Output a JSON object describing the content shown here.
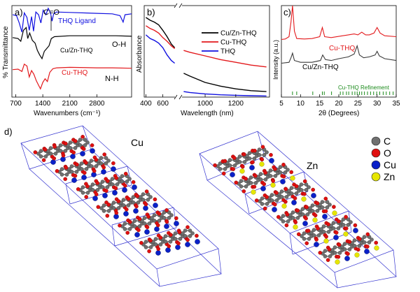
{
  "colors": {
    "black": "#000000",
    "red": "#e3191c",
    "blue": "#1010e0",
    "green": "#1a8a1a",
    "gray": "#3a3a3a",
    "cu": "#0a20c8",
    "zn": "#e6e600",
    "o": "#e01010",
    "c": "#707070",
    "cell": "#3535d0"
  },
  "chart_data": [
    {
      "type": "line",
      "panel_label": "a)",
      "xlabel": "Wavenumbers (cm⁻¹)",
      "ylabel": "% Transmittance",
      "xlim": [
        600,
        3700
      ],
      "ylim": [
        0,
        10
      ],
      "x_ticks": [
        700,
        1400,
        2100,
        2800
      ],
      "annotations": [
        "C=O",
        "O-H",
        "N-H"
      ],
      "series": [
        {
          "name": "THQ Ligand",
          "color": "#1010e0",
          "points": [
            [
              620,
              9.0
            ],
            [
              720,
              8.9
            ],
            [
              790,
              8.1
            ],
            [
              860,
              7.1
            ],
            [
              920,
              9.2
            ],
            [
              990,
              8.7
            ],
            [
              1050,
              7.3
            ],
            [
              1110,
              8.8
            ],
            [
              1160,
              7.2
            ],
            [
              1220,
              9.3
            ],
            [
              1290,
              9.0
            ],
            [
              1350,
              8.1
            ],
            [
              1410,
              9.5
            ],
            [
              1480,
              9.0
            ],
            [
              1540,
              9.7
            ],
            [
              1600,
              9.2
            ],
            [
              1640,
              8.3
            ],
            [
              1680,
              9.1
            ],
            [
              1750,
              9.3
            ],
            [
              2100,
              9.25
            ],
            [
              2800,
              9.15
            ],
            [
              3200,
              9.1
            ],
            [
              3400,
              8.9
            ],
            [
              3480,
              8.2
            ],
            [
              3530,
              9.0
            ],
            [
              3700,
              9.1
            ]
          ]
        },
        {
          "name": "Cu/Zn-THQ",
          "color": "#000000",
          "points": [
            [
              620,
              6.5
            ],
            [
              760,
              6.4
            ],
            [
              830,
              6.1
            ],
            [
              900,
              7.3
            ],
            [
              970,
              7.6
            ],
            [
              1010,
              6.4
            ],
            [
              1060,
              7.0
            ],
            [
              1130,
              6.2
            ],
            [
              1200,
              5.9
            ],
            [
              1260,
              5.1
            ],
            [
              1320,
              4.6
            ],
            [
              1380,
              4.2
            ],
            [
              1440,
              5.0
            ],
            [
              1500,
              5.3
            ],
            [
              1560,
              5.6
            ],
            [
              1620,
              6.4
            ],
            [
              1700,
              6.6
            ],
            [
              2100,
              6.7
            ],
            [
              2800,
              6.7
            ],
            [
              3300,
              6.7
            ],
            [
              3700,
              6.65
            ]
          ]
        },
        {
          "name": "Cu-THQ",
          "color": "#e3191c",
          "points": [
            [
              620,
              3.0
            ],
            [
              760,
              3.05
            ],
            [
              860,
              2.8
            ],
            [
              920,
              3.6
            ],
            [
              990,
              3.4
            ],
            [
              1050,
              2.2
            ],
            [
              1110,
              2.9
            ],
            [
              1170,
              2.5
            ],
            [
              1230,
              1.8
            ],
            [
              1290,
              1.3
            ],
            [
              1340,
              0.9
            ],
            [
              1400,
              1.6
            ],
            [
              1460,
              2.0
            ],
            [
              1520,
              1.7
            ],
            [
              1580,
              2.7
            ],
            [
              1660,
              3.1
            ],
            [
              1760,
              3.2
            ],
            [
              2100,
              3.25
            ],
            [
              2800,
              3.2
            ],
            [
              3200,
              3.2
            ],
            [
              3700,
              3.15
            ]
          ]
        }
      ],
      "labels": {
        "thq": "THQ Ligand",
        "cuzn": "Cu/Zn-THQ",
        "cu": "Cu-THQ"
      }
    },
    {
      "type": "line",
      "panel_label": "b)",
      "xlabel": "Wavelength (nm)",
      "ylabel": "Absorbance",
      "x_ticks_left": [
        400,
        600
      ],
      "x_ticks_right": [
        1000,
        1200
      ],
      "ylim": [
        0,
        10
      ],
      "legend": [
        "Cu/Zn-THQ",
        "Cu-THQ",
        "THQ"
      ],
      "legend_position": "top-right",
      "series": [
        {
          "name": "Cu/Zn-THQ",
          "color": "#000000",
          "points_left": [
            [
              400,
              8.7
            ],
            [
              450,
              8.4
            ],
            [
              500,
              8.2
            ],
            [
              550,
              7.9
            ],
            [
              600,
              7.3
            ],
            [
              650,
              6.6
            ],
            [
              700,
              5.8
            ],
            [
              740,
              5.4
            ]
          ],
          "points_right": [
            [
              860,
              2.6
            ],
            [
              900,
              2.3
            ],
            [
              1000,
              1.6
            ],
            [
              1100,
              1.2
            ],
            [
              1200,
              0.9
            ],
            [
              1300,
              0.7
            ],
            [
              1400,
              0.6
            ]
          ]
        },
        {
          "name": "Cu-THQ",
          "color": "#e3191c",
          "points_left": [
            [
              400,
              7.8
            ],
            [
              450,
              7.5
            ],
            [
              500,
              7.3
            ],
            [
              550,
              7.0
            ],
            [
              600,
              6.5
            ],
            [
              650,
              6.1
            ],
            [
              700,
              5.6
            ],
            [
              740,
              5.3
            ]
          ],
          "points_right": [
            [
              860,
              5.1
            ],
            [
              900,
              4.9
            ],
            [
              1000,
              4.5
            ],
            [
              1100,
              4.1
            ],
            [
              1200,
              3.8
            ],
            [
              1300,
              3.5
            ],
            [
              1400,
              3.3
            ]
          ]
        },
        {
          "name": "THQ",
          "color": "#1010e0",
          "points_left": [
            [
              400,
              6.8
            ],
            [
              450,
              6.4
            ],
            [
              500,
              6.2
            ],
            [
              550,
              5.9
            ],
            [
              600,
              5.4
            ],
            [
              650,
              4.6
            ],
            [
              700,
              4.0
            ],
            [
              740,
              3.7
            ]
          ],
          "points_right": [
            [
              860,
              0.6
            ],
            [
              900,
              0.5
            ],
            [
              1000,
              0.35
            ],
            [
              1100,
              0.25
            ],
            [
              1200,
              0.2
            ],
            [
              1300,
              0.15
            ],
            [
              1400,
              0.12
            ]
          ]
        }
      ]
    },
    {
      "type": "line",
      "panel_label": "c)",
      "xlabel": "2θ (Degrees)",
      "ylabel": "Intensity (a.u.)",
      "xlim": [
        5,
        35
      ],
      "x_ticks": [
        5,
        10,
        15,
        20,
        25,
        30,
        35
      ],
      "ylim": [
        0,
        10
      ],
      "series": [
        {
          "name": "Cu-THQ",
          "color": "#e3191c",
          "points": [
            [
              5,
              6.3
            ],
            [
              6,
              6.35
            ],
            [
              7,
              6.6
            ],
            [
              7.5,
              8.2
            ],
            [
              7.9,
              10.0
            ],
            [
              8.4,
              7.2
            ],
            [
              9,
              6.4
            ],
            [
              11,
              6.35
            ],
            [
              13,
              6.4
            ],
            [
              15,
              6.6
            ],
            [
              15.7,
              7.6
            ],
            [
              16.3,
              6.6
            ],
            [
              18,
              6.5
            ],
            [
              21,
              6.7
            ],
            [
              22.5,
              6.8
            ],
            [
              24,
              6.9
            ],
            [
              25,
              6.8
            ],
            [
              26,
              7.1
            ],
            [
              27,
              6.8
            ],
            [
              28,
              6.8
            ],
            [
              29.2,
              7.0
            ],
            [
              30,
              7.6
            ],
            [
              30.8,
              7.0
            ],
            [
              32,
              6.7
            ],
            [
              35,
              6.6
            ]
          ]
        },
        {
          "name": "Cu/Zn-THQ",
          "color": "#3a3a3a",
          "points": [
            [
              5,
              3.7
            ],
            [
              7,
              3.8
            ],
            [
              7.5,
              4.3
            ],
            [
              7.9,
              4.8
            ],
            [
              8.4,
              4.0
            ],
            [
              10,
              3.8
            ],
            [
              13,
              3.8
            ],
            [
              15.2,
              4.0
            ],
            [
              15.8,
              4.6
            ],
            [
              16.5,
              4.1
            ],
            [
              18,
              4.0
            ],
            [
              20,
              4.2
            ],
            [
              22.5,
              4.4
            ],
            [
              24,
              4.7
            ],
            [
              24.8,
              5.6
            ],
            [
              25.4,
              4.6
            ],
            [
              26.5,
              4.3
            ],
            [
              28,
              4.4
            ],
            [
              29.5,
              4.6
            ],
            [
              30,
              5.0
            ],
            [
              30.6,
              4.5
            ],
            [
              32,
              4.2
            ],
            [
              35,
              4.0
            ]
          ]
        }
      ],
      "refinement_label": "Cu-THQ Refinement",
      "refinement_color": "#1a8a1a",
      "refinement_ticks": [
        7.9,
        9.0,
        13.2,
        15.7,
        16.2,
        18.1,
        20.4,
        21.1,
        22.0,
        22.6,
        23.5,
        24.2,
        24.8,
        25.4,
        26.0,
        26.7,
        27.5,
        28.3,
        29.1,
        29.9,
        30.7,
        31.6,
        32.4,
        33.3,
        34.2
      ],
      "labels": {
        "cu": "Cu-THQ",
        "cuzn": "Cu/Zn-THQ"
      }
    }
  ],
  "panel_d": {
    "panel_label": "d)",
    "label_cu": "Cu",
    "label_zn": "Zn",
    "legend": [
      {
        "label": "C",
        "color": "#707070"
      },
      {
        "label": "O",
        "color": "#e01010"
      },
      {
        "label": "Cu",
        "color": "#0a20c8"
      },
      {
        "label": "Zn",
        "color": "#e6e600"
      }
    ]
  }
}
